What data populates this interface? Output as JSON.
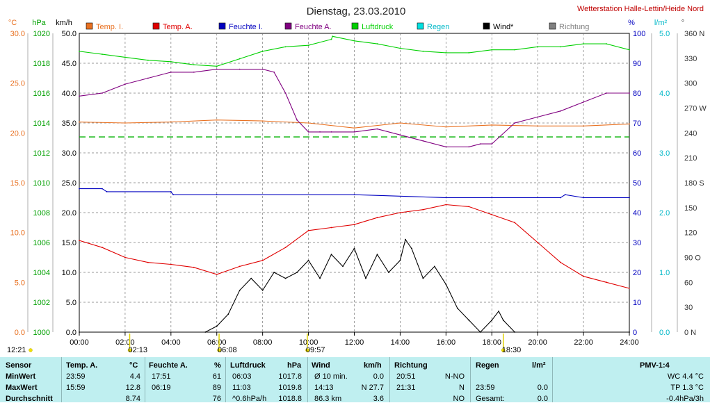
{
  "chart_data": {
    "type": "line",
    "title": "Dienstag, 23.03.2010",
    "station": "Wetterstation Halle-Lettin/Heide Nord",
    "x_ticks": [
      "00:00",
      "02:00",
      "04:00",
      "06:00",
      "08:00",
      "10:00",
      "12:00",
      "14:00",
      "16:00",
      "18:00",
      "20:00",
      "22:00",
      "24:00"
    ],
    "x_range_hours": [
      0,
      24
    ],
    "axes": {
      "temp": {
        "unit": "°C",
        "range": [
          0,
          30
        ],
        "ticks": [
          "0.0",
          "5.0",
          "10.0",
          "15.0",
          "20.0",
          "25.0",
          "30.0"
        ],
        "color": "#e87020"
      },
      "pressure": {
        "unit": "hPa",
        "range": [
          1000,
          1020
        ],
        "ticks": [
          "1000",
          "1002",
          "1004",
          "1006",
          "1008",
          "1010",
          "1012",
          "1014",
          "1016",
          "1018",
          "1020"
        ],
        "color": "#00b000"
      },
      "wind": {
        "unit": "km/h",
        "range": [
          0,
          50
        ],
        "ticks": [
          "0.0",
          "5.0",
          "10.0",
          "15.0",
          "20.0",
          "25.0",
          "30.0",
          "35.0",
          "40.0",
          "45.0",
          "50.0"
        ],
        "color": "#000000"
      },
      "humidity": {
        "unit": "%",
        "range": [
          0,
          100
        ],
        "ticks": [
          "0",
          "10",
          "20",
          "30",
          "40",
          "50",
          "60",
          "70",
          "80",
          "90",
          "100"
        ],
        "color": "#0000c0"
      },
      "rain": {
        "unit": "l/m²",
        "range": [
          0,
          5
        ],
        "ticks": [
          "0.0",
          "1.0",
          "2.0",
          "3.0",
          "4.0",
          "5.0"
        ],
        "color": "#00c0c0"
      },
      "direction": {
        "unit": "°",
        "range": [
          0,
          360
        ],
        "ticks": [
          "0 N",
          "30",
          "60",
          "90 O",
          "120",
          "150",
          "180 S",
          "210",
          "240",
          "270 W",
          "300",
          "330",
          "360 N"
        ],
        "color": "#333333"
      }
    },
    "legend": [
      {
        "name": "Temp. I.",
        "color": "#e87020"
      },
      {
        "name": "Temp. A.",
        "color": "#e00000"
      },
      {
        "name": "Feuchte I.",
        "color": "#0000c0"
      },
      {
        "name": "Feuchte A.",
        "color": "#800080"
      },
      {
        "name": "Luftdruck",
        "color": "#00d000"
      },
      {
        "name": "Regen",
        "color": "#00e0e0"
      },
      {
        "name": "Wind*",
        "color": "#000000"
      },
      {
        "name": "Richtung",
        "color": "#808080"
      }
    ],
    "series": [
      {
        "name": "Temp. I.",
        "axis": "temp",
        "x": [
          0,
          2,
          4,
          6,
          8,
          10,
          12,
          14,
          16,
          18,
          20,
          22,
          24
        ],
        "values": [
          21.1,
          21.0,
          21.1,
          21.3,
          21.2,
          21.0,
          20.5,
          21.0,
          20.6,
          20.8,
          20.7,
          20.7,
          20.9
        ]
      },
      {
        "name": "Temp. A.",
        "axis": "temp",
        "x": [
          0,
          1,
          2,
          3,
          4,
          5,
          6,
          7,
          8,
          9,
          10,
          11,
          12,
          13,
          14,
          15,
          16,
          17,
          18,
          19,
          20,
          21,
          22,
          23,
          23.99
        ],
        "values": [
          9.2,
          8.5,
          7.5,
          7.0,
          6.8,
          6.5,
          5.8,
          6.6,
          7.2,
          8.5,
          10.2,
          10.5,
          10.8,
          11.5,
          12.0,
          12.3,
          12.8,
          12.6,
          11.8,
          11.0,
          9.0,
          7.0,
          5.6,
          5.0,
          4.4
        ]
      },
      {
        "name": "Feuchte I.",
        "axis": "humidity",
        "x": [
          0,
          1,
          1.2,
          4,
          4.1,
          6,
          12,
          16,
          18,
          21,
          21.2,
          22,
          24
        ],
        "values": [
          48,
          48,
          47,
          47,
          46,
          46,
          46,
          45,
          45,
          45,
          46,
          45,
          45
        ]
      },
      {
        "name": "Feuchte A.",
        "axis": "humidity",
        "x": [
          0,
          1,
          2,
          3,
          4,
          5,
          6,
          7,
          8,
          8.5,
          9,
          9.5,
          10,
          10.5,
          11,
          12,
          13,
          14,
          15,
          16,
          17,
          17.5,
          18,
          19,
          20,
          21,
          22,
          23,
          24
        ],
        "values": [
          79,
          80,
          83,
          85,
          87,
          87,
          88,
          88,
          88,
          87,
          80,
          71,
          67,
          67,
          67,
          67,
          68,
          66,
          64,
          62,
          62,
          63,
          63,
          70,
          72,
          74,
          77,
          80,
          80
        ]
      },
      {
        "name": "Luftdruck",
        "axis": "pressure",
        "x": [
          0,
          1,
          2,
          3,
          4,
          5,
          6,
          7,
          8,
          9,
          10,
          11,
          11.05,
          12,
          13,
          14,
          15,
          16,
          17,
          18,
          19,
          20,
          21,
          22,
          23,
          24
        ],
        "values": [
          1018.8,
          1018.6,
          1018.4,
          1018.2,
          1018.1,
          1017.9,
          1017.8,
          1018.3,
          1018.8,
          1019.1,
          1019.2,
          1019.6,
          1019.8,
          1019.5,
          1019.3,
          1019.0,
          1018.8,
          1018.7,
          1018.7,
          1018.9,
          1018.9,
          1019.1,
          1019.1,
          1019.3,
          1019.3,
          1018.9
        ]
      },
      {
        "name": "Wind*",
        "axis": "wind",
        "x": [
          0,
          5.5,
          6,
          6.5,
          7,
          7.5,
          8,
          8.5,
          9,
          9.5,
          10,
          10.5,
          11,
          11.5,
          12,
          12.5,
          13,
          13.5,
          14,
          14.23,
          14.5,
          15,
          15.5,
          16,
          16.5,
          17,
          17.5,
          18,
          18.3,
          18.5,
          19,
          20,
          24
        ],
        "values": [
          0,
          0,
          1,
          3,
          7,
          9,
          7,
          10,
          9,
          10,
          12,
          9,
          13,
          11,
          14,
          9,
          13,
          10,
          12,
          15.5,
          14,
          9,
          11,
          8,
          4,
          2,
          0,
          2,
          3.5,
          2,
          0,
          0,
          0
        ]
      }
    ],
    "reference_line": {
      "axis": "temp",
      "value": 19.6,
      "color": "#00b000",
      "style": "dashed"
    },
    "markers_bottom": [
      {
        "time": "12:21",
        "hour": -0.5
      },
      {
        "time": "02:13",
        "hour": 2.2
      },
      {
        "time": "06:08",
        "hour": 6.1
      },
      {
        "time": "09:57",
        "hour": 9.95
      },
      {
        "time": "18:30",
        "hour": 18.5
      }
    ]
  },
  "stats": {
    "headers": {
      "sensor": "Sensor",
      "temp": "Temp. A.",
      "temp_unit": "°C",
      "hum": "Feuchte A.",
      "hum_unit": "%",
      "press": "Luftdruck",
      "press_unit": "hPa",
      "wind": "Wind",
      "wind_unit": "km/h",
      "dir": "Richtung",
      "rain": "Regen",
      "rain_unit": "l/m²",
      "pmv": "PMV-1:4"
    },
    "rows": [
      {
        "label": "MinWert",
        "temp_time": "23:59",
        "temp": "4.4",
        "hum_time": "17:51",
        "hum": "61",
        "press_time": "06:03",
        "press": "1017.8",
        "wind_label": "Ø 10 min.",
        "wind": "0.0",
        "dir_time": "20:51",
        "dir": "N-NO",
        "rain_time": "",
        "rain": "",
        "pmv": "WC 4.4 °C"
      },
      {
        "label": "MaxWert",
        "temp_time": "15:59",
        "temp": "12.8",
        "hum_time": "06:19",
        "hum": "89",
        "press_time": "11:03",
        "press": "1019.8",
        "wind_label": "14:13",
        "wind": "N 27.7",
        "dir_time": "21:31",
        "dir": "N",
        "rain_time": "23:59",
        "rain": "0.0",
        "pmv": "TP 1.3 °C"
      },
      {
        "label": "Durchschnitt",
        "temp_time": "",
        "temp": "8.74",
        "hum_time": "",
        "hum": "76",
        "press_time": "^0.6hPa/h",
        "press": "1018.8",
        "wind_label": "86.3 km",
        "wind": "3.6",
        "dir_time": "",
        "dir": "NO",
        "rain_time": "Gesamt:",
        "rain": "0.0",
        "pmv": "-0.4hPa/3h"
      }
    ]
  }
}
